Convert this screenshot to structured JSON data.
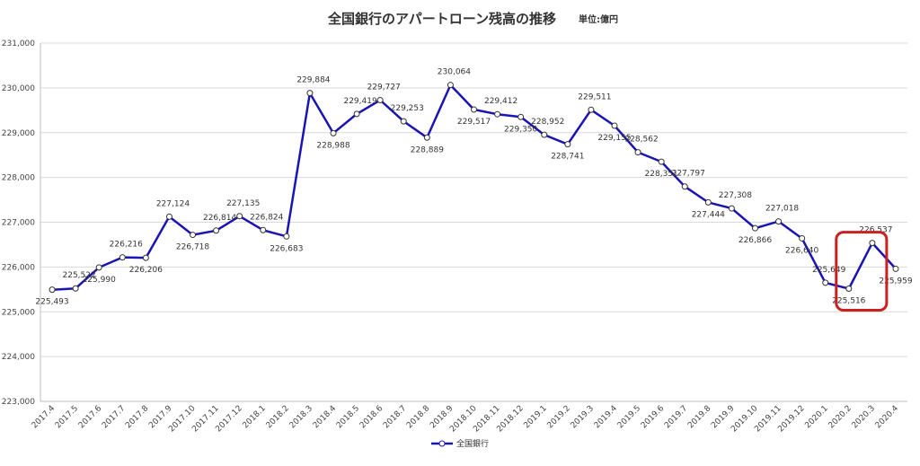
{
  "chart_data": {
    "type": "line",
    "title": "全国銀行のアパートローン残高の推移",
    "unit_label": "単位:億円",
    "xlabel": "",
    "ylabel": "",
    "ylim": [
      223000,
      231000
    ],
    "yticks": [
      "223,000",
      "224,000",
      "225,000",
      "226,000",
      "227,000",
      "228,000",
      "229,000",
      "230,000",
      "231,000"
    ],
    "ytick_values": [
      223000,
      224000,
      225000,
      226000,
      227000,
      228000,
      229000,
      230000,
      231000
    ],
    "grid": true,
    "legend_position": "bottom",
    "categories": [
      "2017.4",
      "2017.5",
      "2017.6",
      "2017.7",
      "2017.8",
      "2017.9",
      "2017.10",
      "2017.11",
      "2017.12",
      "2018.1",
      "2018.2",
      "2018.3",
      "2018.4",
      "2018.5",
      "2018.6",
      "2018.7",
      "2018.8",
      "2018.9",
      "2018.10",
      "2018.11",
      "2018.12",
      "2019.1",
      "2019.2",
      "2019.3",
      "2019.4",
      "2019.5",
      "2019.6",
      "2019.7",
      "2019.8",
      "2019.9",
      "2019.10",
      "2019.11",
      "2019.12",
      "2020.1",
      "2020.2",
      "2020.3",
      "2020.4"
    ],
    "series": [
      {
        "name": "全国銀行",
        "color": "#1a14b4",
        "values": [
          225493,
          225522,
          225990,
          226216,
          226206,
          227124,
          226718,
          226814,
          227135,
          226824,
          226683,
          229884,
          228988,
          229419,
          229727,
          229253,
          228889,
          230064,
          229517,
          229412,
          229350,
          228952,
          228741,
          229511,
          229155,
          228562,
          228351,
          227797,
          227444,
          227308,
          226866,
          227018,
          226640,
          225649,
          225516,
          226537,
          225959
        ],
        "labels": [
          "225,493",
          "225,522",
          "225,990",
          "226,216",
          "226,206",
          "227,124",
          "226,718",
          "226,814",
          "227,135",
          "226,824",
          "226,683",
          "229,884",
          "228,988",
          "229,419",
          "229,727",
          "229,253",
          "228,889",
          "230,064",
          "229,517",
          "229,412",
          "229,350",
          "228,952",
          "228,741",
          "229,511",
          "229,155",
          "228,562",
          "228,351",
          "227,797",
          "227,444",
          "227,308",
          "226,866",
          "227,018",
          "226,640",
          "225,649",
          "225,516",
          "226,537",
          "225,959"
        ]
      }
    ],
    "highlight": {
      "from": "2020.2",
      "to": "2020.3",
      "color": "#cc1f1f"
    }
  }
}
